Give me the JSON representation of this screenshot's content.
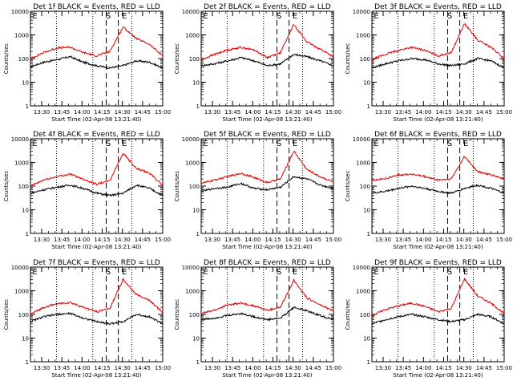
{
  "figure": {
    "ylabel": "Counts/sec",
    "xlabel": "Start Time (02-Apr-08 13:21:40)",
    "y_ticks": [
      1,
      10,
      100,
      1000,
      10000
    ],
    "y_tick_labels": [
      "1",
      "10",
      "100",
      "1000",
      "10000"
    ],
    "x_ticks": [
      "13:30",
      "13:45",
      "14:00",
      "14:15",
      "14:30",
      "14:45",
      "15:00"
    ],
    "x_tick_minutes": [
      30,
      45,
      60,
      75,
      90,
      105,
      120
    ],
    "xlim_minutes": [
      21.67,
      120
    ],
    "dotted_lines_minutes": [
      41,
      68,
      97
    ],
    "dashed_lines_minutes": [
      78,
      87
    ],
    "markers": [
      {
        "label": "E",
        "minute": 22.5
      },
      {
        "label": "S",
        "minute": 77
      },
      {
        "label": "E",
        "minute": 89
      }
    ],
    "colors": {
      "events": "#000000",
      "lld": "#e00000"
    }
  },
  "chart_data": [
    {
      "type": "line",
      "title": "Det 1f BLACK = Events, RED = LLD",
      "ylim": [
        1,
        10000
      ],
      "yscale": "log",
      "series": [
        {
          "name": "Events",
          "values": [
            45,
            70,
            90,
            120,
            70,
            50,
            40,
            50,
            80,
            70,
            40
          ]
        },
        {
          "name": "LLD",
          "values": [
            100,
            180,
            280,
            300,
            180,
            130,
            200,
            2200,
            700,
            400,
            130
          ]
        }
      ]
    },
    {
      "type": "line",
      "title": "Det 2f BLACK = Events, RED = LLD",
      "ylim": [
        1,
        10000
      ],
      "yscale": "log",
      "series": [
        {
          "name": "Events",
          "values": [
            50,
            60,
            80,
            110,
            80,
            50,
            60,
            150,
            120,
            80,
            50
          ]
        },
        {
          "name": "LLD",
          "values": [
            90,
            150,
            230,
            300,
            230,
            110,
            180,
            2800,
            500,
            250,
            120
          ]
        }
      ]
    },
    {
      "type": "line",
      "title": "Det 3f BLACK = Events, RED = LLD",
      "ylim": [
        1,
        10000
      ],
      "yscale": "log",
      "series": [
        {
          "name": "Events",
          "values": [
            40,
            60,
            80,
            100,
            90,
            60,
            50,
            60,
            100,
            80,
            40
          ]
        },
        {
          "name": "LLD",
          "values": [
            90,
            150,
            220,
            300,
            220,
            130,
            180,
            3000,
            600,
            300,
            100
          ]
        }
      ]
    },
    {
      "type": "line",
      "title": "Det 4f BLACK = Events, RED = LLD",
      "ylim": [
        1,
        10000
      ],
      "yscale": "log",
      "series": [
        {
          "name": "Events",
          "values": [
            50,
            70,
            90,
            110,
            80,
            50,
            40,
            50,
            110,
            80,
            40
          ]
        },
        {
          "name": "LLD",
          "values": [
            100,
            180,
            250,
            320,
            200,
            120,
            170,
            2500,
            550,
            350,
            110
          ]
        }
      ]
    },
    {
      "type": "line",
      "title": "Det 5f BLACK = Events, RED = LLD",
      "ylim": [
        1,
        10000
      ],
      "yscale": "log",
      "series": [
        {
          "name": "Events",
          "values": [
            60,
            80,
            90,
            130,
            80,
            70,
            90,
            250,
            200,
            110,
            80
          ]
        },
        {
          "name": "LLD",
          "values": [
            130,
            180,
            250,
            350,
            230,
            140,
            200,
            3000,
            500,
            250,
            150
          ]
        }
      ]
    },
    {
      "type": "line",
      "title": "Det 6f BLACK = Events, RED = LLD",
      "ylim": [
        1,
        10000
      ],
      "yscale": "log",
      "series": [
        {
          "name": "Events",
          "values": [
            50,
            60,
            80,
            100,
            80,
            60,
            50,
            80,
            110,
            80,
            50
          ]
        },
        {
          "name": "LLD",
          "values": [
            180,
            200,
            300,
            320,
            250,
            180,
            200,
            1800,
            400,
            300,
            200
          ]
        }
      ]
    },
    {
      "type": "line",
      "title": "Det 7f BLACK = Events, RED = LLD",
      "ylim": [
        1,
        10000
      ],
      "yscale": "log",
      "series": [
        {
          "name": "Events",
          "values": [
            50,
            80,
            100,
            110,
            70,
            50,
            40,
            50,
            100,
            80,
            40
          ]
        },
        {
          "name": "LLD",
          "values": [
            100,
            200,
            280,
            320,
            200,
            130,
            180,
            3000,
            700,
            400,
            120
          ]
        }
      ]
    },
    {
      "type": "line",
      "title": "Det 8f BLACK = Events, RED = LLD",
      "ylim": [
        1,
        10000
      ],
      "yscale": "log",
      "series": [
        {
          "name": "Events",
          "values": [
            60,
            70,
            90,
            110,
            80,
            60,
            70,
            200,
            140,
            90,
            60
          ]
        },
        {
          "name": "LLD",
          "values": [
            110,
            150,
            250,
            300,
            230,
            150,
            200,
            2800,
            500,
            250,
            140
          ]
        }
      ]
    },
    {
      "type": "line",
      "title": "Det 9f BLACK = Events, RED = LLD",
      "ylim": [
        1,
        10000
      ],
      "yscale": "log",
      "series": [
        {
          "name": "Events",
          "values": [
            40,
            60,
            80,
            100,
            80,
            60,
            50,
            60,
            100,
            80,
            40
          ]
        },
        {
          "name": "LLD",
          "values": [
            90,
            160,
            230,
            300,
            220,
            130,
            180,
            3200,
            600,
            300,
            110
          ]
        }
      ]
    }
  ]
}
